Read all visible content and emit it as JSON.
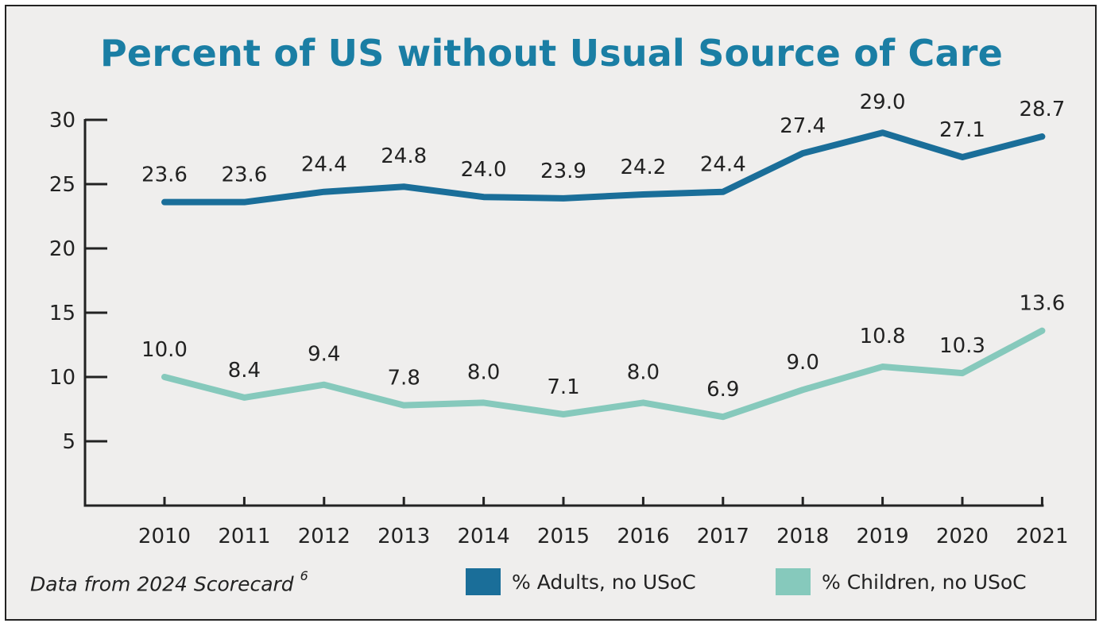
{
  "colors": {
    "adults": "#1a6e99",
    "children": "#86c9bc",
    "title": "#1a7ea4",
    "axis": "#222222"
  },
  "source_note": {
    "text": "Data from 2024 Scorecard",
    "ref": "6"
  },
  "chart_data": {
    "type": "line",
    "title": "Percent of US without Usual Source of Care",
    "xlabel": "",
    "ylabel": "",
    "x": [
      "2010",
      "2011",
      "2012",
      "2013",
      "2014",
      "2015",
      "2016",
      "2017",
      "2018",
      "2019",
      "2020",
      "2021"
    ],
    "ylim": [
      0,
      30
    ],
    "yticks": [
      "5",
      "10",
      "15",
      "20",
      "25",
      "30"
    ],
    "grid": false,
    "legend_position": "bottom-right",
    "series": [
      {
        "name": "% Adults, no USoC",
        "values": [
          23.6,
          23.6,
          24.4,
          24.8,
          24.0,
          23.9,
          24.2,
          24.4,
          27.4,
          29.0,
          27.1,
          28.7
        ],
        "labels": [
          "23.6",
          "23.6",
          "24.4",
          "24.8",
          "24.0",
          "23.9",
          "24.2",
          "24.4",
          "27.4",
          "29.0",
          "27.1",
          "28.7"
        ]
      },
      {
        "name": "% Children, no USoC",
        "values": [
          10.0,
          8.4,
          9.4,
          7.8,
          8.0,
          7.1,
          8.0,
          6.9,
          9.0,
          10.8,
          10.3,
          13.6
        ],
        "labels": [
          "10.0",
          "8.4",
          "9.4",
          "7.8",
          "8.0",
          "7.1",
          "8.0",
          "6.9",
          "9.0",
          "10.8",
          "10.3",
          "13.6"
        ]
      }
    ]
  }
}
